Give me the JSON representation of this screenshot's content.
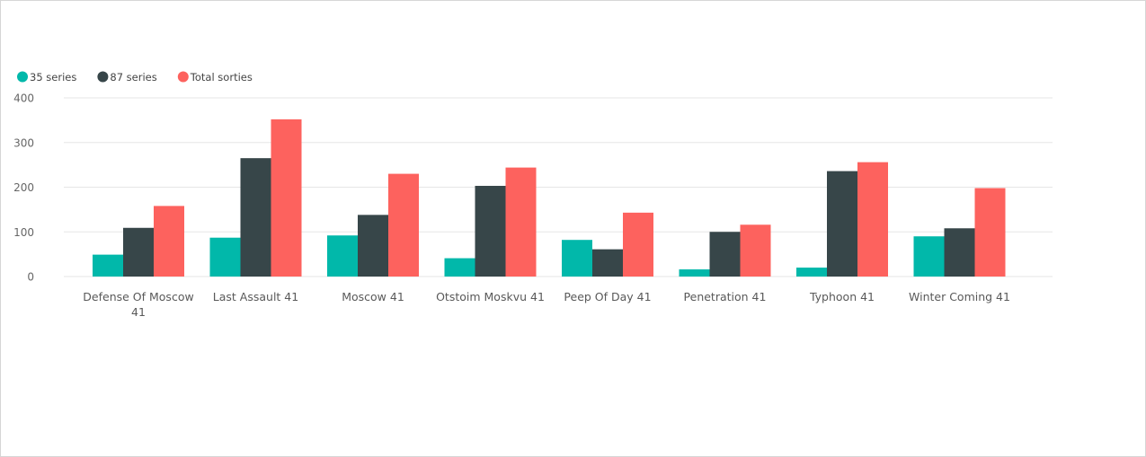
{
  "colors": {
    "series1": "#01b8aa",
    "series2": "#374649",
    "series3": "#fd625e"
  },
  "chart_data": {
    "type": "bar",
    "grid": true,
    "legend_placement": "top-left",
    "ylim": [
      0,
      400
    ],
    "yticks": [
      "0",
      "100",
      "200",
      "300",
      "400"
    ],
    "categories": [
      [
        "Defense Of Moscow",
        "41"
      ],
      [
        "Last Assault 41"
      ],
      [
        "Moscow 41"
      ],
      [
        "Otstoim Moskvu 41"
      ],
      [
        "Peep Of Day 41"
      ],
      [
        "Penetration 41"
      ],
      [
        "Typhoon 41"
      ],
      [
        "Winter Coming 41"
      ]
    ],
    "series": [
      {
        "name": "35 series",
        "values": [
          49,
          87,
          92,
          41,
          82,
          16,
          20,
          90
        ]
      },
      {
        "name": "87 series",
        "values": [
          109,
          265,
          138,
          203,
          61,
          100,
          236,
          108
        ]
      },
      {
        "name": "Total sorties",
        "values": [
          158,
          352,
          230,
          244,
          143,
          116,
          256,
          198
        ]
      }
    ]
  }
}
